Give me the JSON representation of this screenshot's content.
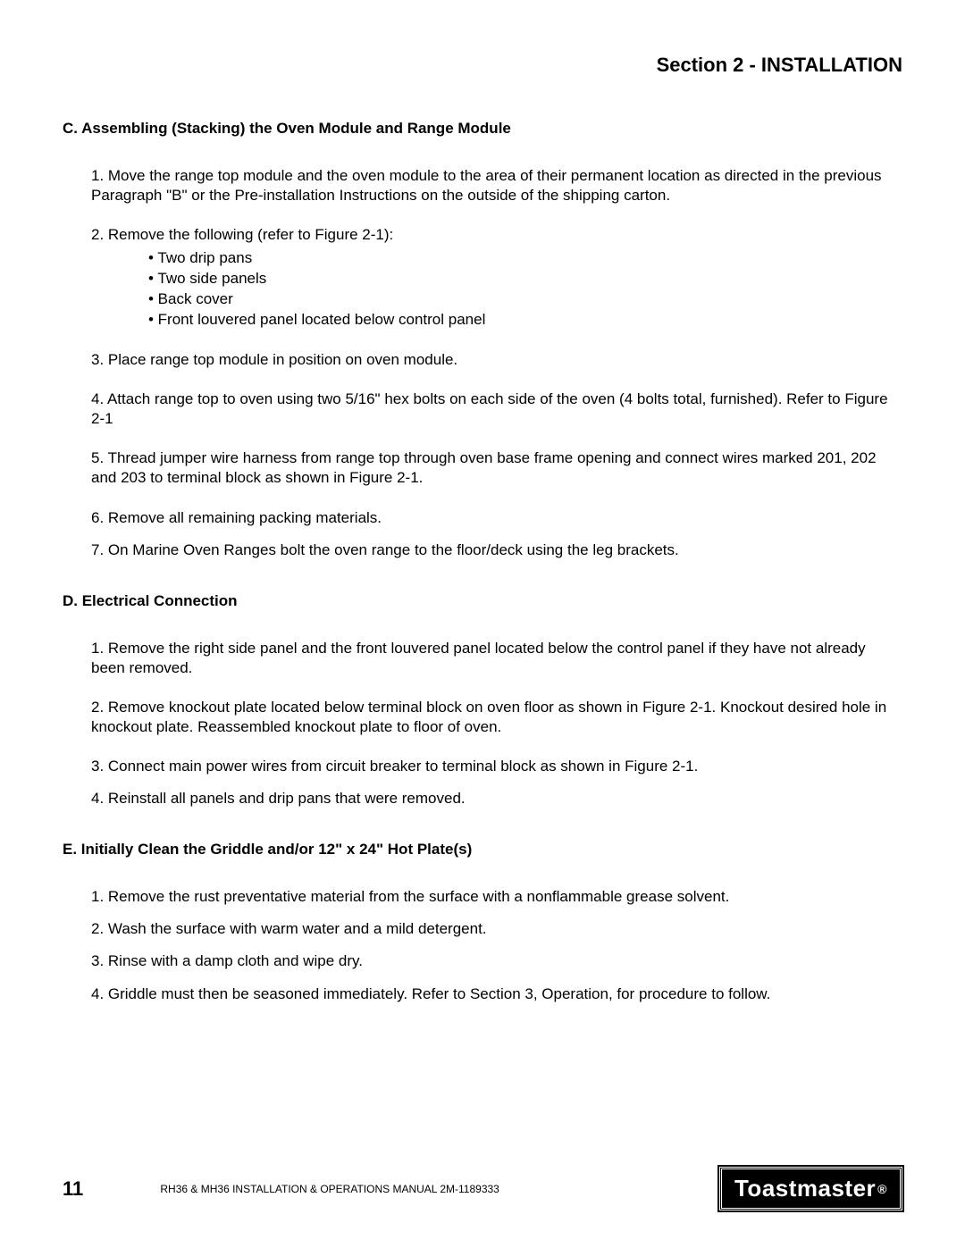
{
  "section_title": "Section 2 - INSTALLATION",
  "subsection_c": {
    "heading": "C. Assembling (Stacking) the Oven Module and Range Module",
    "item1": "1. Move the range top module and the oven module to the area of their permanent location as directed in the previous Paragraph \"B\" or the Pre-installation Instructions on the outside of the shipping carton.",
    "item2_lead": "2. Remove the following (refer to Figure 2-1):",
    "item2_bullets": {
      "b1": "• Two drip pans",
      "b2": "• Two side panels",
      "b3": "• Back cover",
      "b4": "• Front louvered panel located below control panel"
    },
    "item3": "3. Place range top module in position on oven module.",
    "item4": "4. Attach range top to oven using two 5/16\" hex bolts on each side of the oven (4 bolts total, furnished). Refer to Figure 2-1",
    "item5": "5. Thread jumper wire harness from range top through oven base frame opening and connect wires marked 201, 202 and 203 to terminal block as shown in Figure 2-1.",
    "item6": "6. Remove all remaining packing materials.",
    "item7": "7. On Marine Oven Ranges bolt the oven range to the floor/deck using the leg brackets."
  },
  "subsection_d": {
    "heading": "D. Electrical Connection",
    "item1": "1. Remove the right side panel and the front louvered panel located below the control panel if they have not already been removed.",
    "item2": "2. Remove knockout plate located below terminal block on oven floor as shown in Figure 2-1. Knockout desired hole in knockout plate. Reassembled knockout plate to floor of oven.",
    "item3": "3. Connect main power wires from circuit breaker to terminal block as shown in Figure 2-1.",
    "item4": "4. Reinstall all panels and drip pans that were removed."
  },
  "subsection_e": {
    "heading": "E. Initially Clean the Griddle and/or 12\" x 24\" Hot Plate(s)",
    "item1": "1. Remove the rust preventative material from the surface with a nonflammable grease solvent.",
    "item2": "2. Wash the surface with warm water and a mild detergent.",
    "item3": "3. Rinse with a damp cloth and wipe dry.",
    "item4": "4. Griddle must then be seasoned immediately. Refer to Section 3, Operation, for procedure to follow."
  },
  "footer": {
    "page_number": "11",
    "manual_ref": "RH36 & MH36 INSTALLATION & OPERATIONS MANUAL 2M-1189333",
    "brand": "Toastmaster",
    "reg": "®"
  }
}
